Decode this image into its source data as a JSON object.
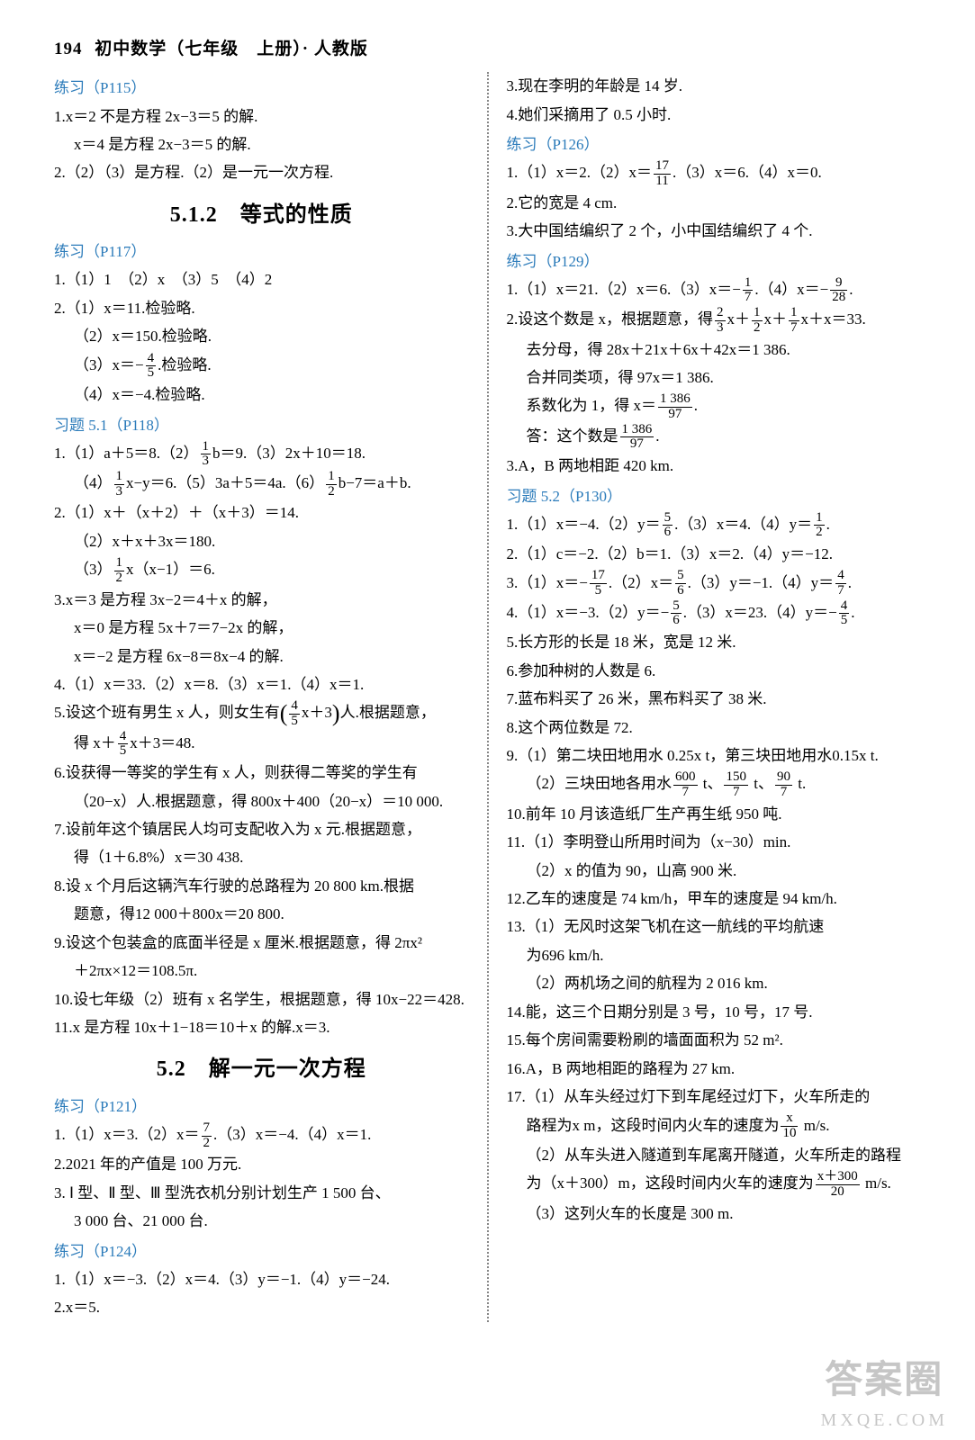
{
  "colors": {
    "text": "#000000",
    "link": "#2b7bba",
    "background": "#ffffff",
    "divider": "#888888",
    "watermark": "#999999"
  },
  "typography": {
    "body_fontsize_pt": 13,
    "heading_fontsize_pt": 18,
    "subheading_fontsize_pt": 12
  },
  "header": {
    "page_num": "194",
    "title": "初中数学（七年级　上册）· 人教版"
  },
  "left": {
    "s115": {
      "title": "练习（P115）",
      "l1": "1.x＝2 不是方程 2x−3＝5 的解.",
      "l2": "x＝4 是方程 2x−3＝5 的解.",
      "l3": "2.（2）（3）是方程.（2）是一元一次方程."
    },
    "h512": "5.1.2　等式的性质",
    "s117": {
      "title": "练习（P117）",
      "l1": "1.（1）1　（2）x　（3）5　（4）2",
      "l2": "2.（1）x＝11.检验略.",
      "l3": "（2）x＝150.检验略.",
      "l4a": "（3）x＝−",
      "l4b": ".检验略.",
      "l5": "（4）x＝−4.检验略."
    },
    "xt51": {
      "title": "习题 5.1（P118）",
      "l1a": "1.（1）a＋5＝8.（2）",
      "l1b": "b＝9.（3）2x＋10＝18.",
      "l2a": "（4）",
      "l2b": "x−y＝6.（5）3a＋5＝4a.（6）",
      "l2c": "b−7＝a＋b.",
      "l3": "2.（1）x＋（x＋2）＋（x＋3）＝14.",
      "l4": "（2）x＋x＋3x＝180.",
      "l5a": "（3）",
      "l5b": "x（x−1）＝6.",
      "l6": "3.x＝3 是方程 3x−2＝4＋x 的解，",
      "l7": "x＝0 是方程 5x＋7＝7−2x 的解，",
      "l8": "x＝−2 是方程 6x−8＝8x−4 的解.",
      "l9": "4.（1）x＝33.（2）x＝8.（3）x＝1.（4）x＝1.",
      "l10a": "5.设这个班有男生 x 人，则女生有",
      "l10b": "x＋3",
      "l10c": "人.根据题意，",
      "l11a": "得 x＋",
      "l11b": "x＋3＝48.",
      "l12": "6.设获得一等奖的学生有 x 人，则获得二等奖的学生有",
      "l13": "（20−x）人.根据题意，得 800x＋400（20−x）＝10 000.",
      "l14": "7.设前年这个镇居民人均可支配收入为 x 元.根据题意，",
      "l15": "得（1＋6.8%）x＝30 438.",
      "l16": "8.设 x 个月后这辆汽车行驶的总路程为 20 800 km.根据",
      "l17": "题意，得12 000＋800x＝20 800.",
      "l18": "9.设这个包装盒的底面半径是 x 厘米.根据题意，得 2πx²",
      "l19": "＋2πx×12＝108.5π.",
      "l20": "10.设七年级（2）班有 x 名学生，根据题意，得 10x−22＝428.",
      "l21": "11.x 是方程 10x＋1−18＝10＋x 的解.x＝3."
    },
    "h52": "5.2　解一元一次方程",
    "s121": {
      "title": "练习（P121）",
      "l1a": "1.（1）x＝3.（2）x＝",
      "l1b": ".（3）x＝−4.（4）x＝1.",
      "l2": "2.2021 年的产值是 100 万元.",
      "l3": "3. Ⅰ 型、Ⅱ 型、Ⅲ 型洗衣机分别计划生产 1 500 台、",
      "l4": "3 000 台、21 000 台."
    },
    "s124": {
      "title": "练习（P124）",
      "l1": "1.（1）x＝−3.（2）x＝4.（3）y＝−1.（4）y＝−24.",
      "l2": "2.x＝5."
    }
  },
  "right": {
    "cont": {
      "l1": "3.现在李明的年龄是 14 岁.",
      "l2": "4.她们采摘用了 0.5 小时."
    },
    "s126": {
      "title": "练习（P126）",
      "l1a": "1.（1）x＝2.（2）x＝",
      "l1b": ".（3）x＝6.（4）x＝0.",
      "l2": "2.它的宽是 4 cm.",
      "l3": "3.大中国结编织了 2 个，小中国结编织了 4 个."
    },
    "s129": {
      "title": "练习（P129）",
      "l1a": "1.（1）x＝21.（2）x＝6.（3）x＝−",
      "l1b": ".（4）x＝−",
      "l1c": ".",
      "l2a": "2.设这个数是 x，根据题意，得",
      "l2b": "x＋",
      "l2c": "x＋",
      "l2d": "x＋x＝33.",
      "l3": "去分母，得 28x＋21x＋6x＋42x＝1 386.",
      "l4": "合并同类项，得 97x＝1 386.",
      "l5a": "系数化为 1，得 x＝",
      "l5b": ".",
      "l6a": "答：这个数是",
      "l6b": ".",
      "l7": "3.A，B 两地相距 420 km."
    },
    "xt52": {
      "title": "习题 5.2（P130）",
      "l1a": "1.（1）x＝−4.（2）y＝",
      "l1b": ".（3）x＝4.（4）y＝",
      "l1c": ".",
      "l2": "2.（1）c＝−2.（2）b＝1.（3）x＝2.（4）y＝−12.",
      "l3a": "3.（1）x＝−",
      "l3b": ".（2）x＝",
      "l3c": ".（3）y＝−1.（4）y＝",
      "l3d": ".",
      "l4a": "4.（1）x＝−3.（2）y＝−",
      "l4b": ".（3）x＝23.（4）y＝−",
      "l4c": ".",
      "l5": "5.长方形的长是 18 米，宽是 12 米.",
      "l6": "6.参加种树的人数是 6.",
      "l7": "7.蓝布料买了 26 米，黑布料买了 38 米.",
      "l8": "8.这个两位数是 72.",
      "l9": "9.（1）第二块田地用水 0.25x t，第三块田地用水0.15x t.",
      "l10a": "（2）三块田地各用水",
      "l10b": " t、",
      "l10c": " t、",
      "l10d": " t.",
      "l11": "10.前年 10 月该造纸厂生产再生纸 950 吨.",
      "l12": "11.（1）李明登山所用时间为（x−30）min.",
      "l13": "（2）x 的值为 90，山高 900 米.",
      "l14": "12.乙车的速度是 74 km/h，甲车的速度是 94 km/h.",
      "l15": "13.（1）无风时这架飞机在这一航线的平均航速",
      "l16": "为696 km/h.",
      "l17": "（2）两机场之间的航程为 2 016 km.",
      "l18": "14.能，这三个日期分别是 3 号，10 号，17 号.",
      "l19": "15.每个房间需要粉刷的墙面面积为 52 m².",
      "l20": "16.A，B 两地相距的路程为 27 km.",
      "l21": "17.（1）从车头经过灯下到车尾经过灯下，火车所走的",
      "l22a": "路程为x m，这段时间内火车的速度为",
      "l22b": " m/s.",
      "l23": "（2）从车头进入隧道到车尾离开隧道，火车所走的路程",
      "l24a": "为（x＋300）m，这段时间内火车的速度为",
      "l24b": " m/s.",
      "l25": "（3）这列火车的长度是 300 m."
    }
  },
  "frac": {
    "4_5n": "4",
    "4_5d": "5",
    "1_3n": "1",
    "1_3d": "3",
    "1_2n": "1",
    "1_2d": "2",
    "7_2n": "7",
    "7_2d": "2",
    "17_11n": "17",
    "17_11d": "11",
    "1_7n": "1",
    "1_7d": "7",
    "9_28n": "9",
    "9_28d": "28",
    "2_3n": "2",
    "2_3d": "3",
    "1386_97n": "1 386",
    "1386_97d": "97",
    "5_6n": "5",
    "5_6d": "6",
    "17_5n": "17",
    "17_5d": "5",
    "4_7n": "4",
    "4_7d": "7",
    "600_7n": "600",
    "600_7d": "7",
    "150_7n": "150",
    "150_7d": "7",
    "90_7n": "90",
    "90_7d": "7",
    "x_10n": "x",
    "x_10d": "10",
    "x300_20n": "x＋300",
    "x300_20d": "20"
  },
  "wm": {
    "top": "答案圈",
    "bot": "MXQE.COM"
  }
}
